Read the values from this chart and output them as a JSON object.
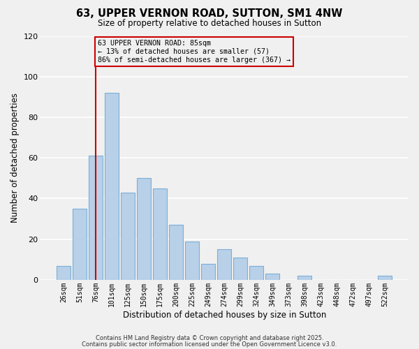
{
  "title": "63, UPPER VERNON ROAD, SUTTON, SM1 4NW",
  "subtitle": "Size of property relative to detached houses in Sutton",
  "xlabel": "Distribution of detached houses by size in Sutton",
  "ylabel": "Number of detached properties",
  "bar_labels": [
    "26sqm",
    "51sqm",
    "76sqm",
    "101sqm",
    "125sqm",
    "150sqm",
    "175sqm",
    "200sqm",
    "225sqm",
    "249sqm",
    "274sqm",
    "299sqm",
    "324sqm",
    "349sqm",
    "373sqm",
    "398sqm",
    "423sqm",
    "448sqm",
    "472sqm",
    "497sqm",
    "522sqm"
  ],
  "bar_values": [
    7,
    35,
    61,
    92,
    43,
    50,
    45,
    27,
    19,
    8,
    15,
    11,
    7,
    3,
    0,
    2,
    0,
    0,
    0,
    0,
    2
  ],
  "bar_color": "#b8d0e8",
  "bar_edge_color": "#7aafd6",
  "background_color": "#f0f0f0",
  "grid_color": "#ffffff",
  "vline_x_index": 2,
  "vline_color": "#cc0000",
  "annotation_line1": "63 UPPER VERNON ROAD: 85sqm",
  "annotation_line2": "← 13% of detached houses are smaller (57)",
  "annotation_line3": "86% of semi-detached houses are larger (367) →",
  "annotation_box_edge": "#cc0000",
  "ylim": [
    0,
    120
  ],
  "yticks": [
    0,
    20,
    40,
    60,
    80,
    100,
    120
  ],
  "footer1": "Contains HM Land Registry data © Crown copyright and database right 2025.",
  "footer2": "Contains public sector information licensed under the Open Government Licence v3.0."
}
